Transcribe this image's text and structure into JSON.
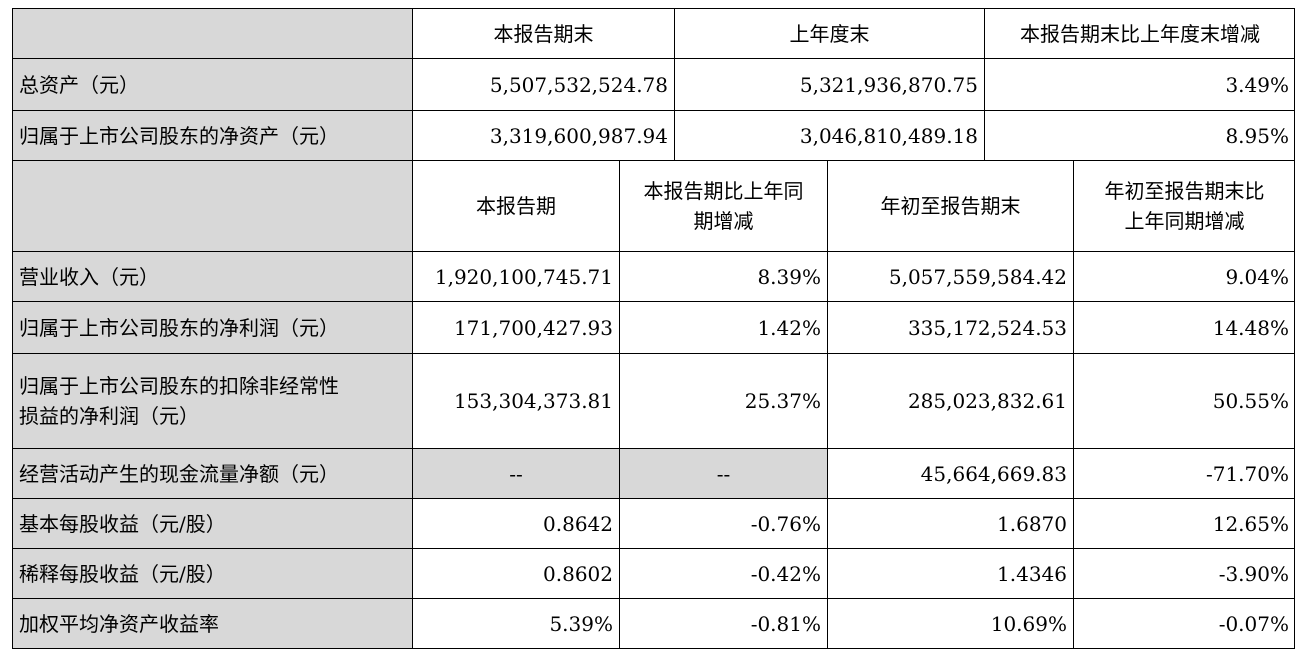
{
  "top_header": {
    "col1": "本报告期末",
    "col2": "上年度末",
    "col3": "本报告期末比上年度末增减"
  },
  "top_rows": [
    {
      "label": "总资产（元）",
      "v1": "5,507,532,524.78",
      "v2": "5,321,936,870.75",
      "v3": "3.49%"
    },
    {
      "label": "归属于上市公司股东的净资产（元）",
      "v1": "3,319,600,987.94",
      "v2": "3,046,810,489.18",
      "v3": "8.95%"
    }
  ],
  "mid_header": {
    "col1": "本报告期",
    "col2_line1": "本报告期比上年同",
    "col2_line2": "期增减",
    "col3": "年初至报告期末",
    "col4_line1": "年初至报告期末比",
    "col4_line2": "上年同期增减"
  },
  "rows": [
    {
      "label": "营业收入（元）",
      "v1": "1,920,100,745.71",
      "v2": "8.39%",
      "v3": "5,057,559,584.42",
      "v4": "9.04%"
    },
    {
      "label": "归属于上市公司股东的净利润（元）",
      "v1": "171,700,427.93",
      "v2": "1.42%",
      "v3": "335,172,524.53",
      "v4": "14.48%"
    },
    {
      "label_line1": "归属于上市公司股东的扣除非经常性",
      "label_line2": "损益的净利润（元）",
      "v1": "153,304,373.81",
      "v2": "25.37%",
      "v3": "285,023,832.61",
      "v4": "50.55%"
    },
    {
      "label": "经营活动产生的现金流量净额（元）",
      "v1": "--",
      "v2": "--",
      "v3": "45,664,669.83",
      "v4": "-71.70%"
    },
    {
      "label": "基本每股收益（元/股）",
      "v1": "0.8642",
      "v2": "-0.76%",
      "v3": "1.6870",
      "v4": "12.65%"
    },
    {
      "label": "稀释每股收益（元/股）",
      "v1": "0.8602",
      "v2": "-0.42%",
      "v3": "1.4346",
      "v4": "-3.90%"
    },
    {
      "label": "加权平均净资产收益率",
      "v1": "5.39%",
      "v2": "-0.81%",
      "v3": "10.69%",
      "v4": "-0.07%"
    }
  ]
}
